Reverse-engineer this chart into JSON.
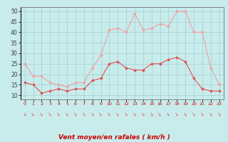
{
  "x": [
    0,
    1,
    2,
    3,
    4,
    5,
    6,
    7,
    8,
    9,
    10,
    11,
    12,
    13,
    14,
    15,
    16,
    17,
    18,
    19,
    20,
    21,
    22,
    23
  ],
  "wind_avg": [
    16,
    15,
    11,
    12,
    13,
    12,
    13,
    13,
    17,
    18,
    25,
    26,
    23,
    22,
    22,
    25,
    25,
    27,
    28,
    26,
    18,
    13,
    12,
    12
  ],
  "wind_gust": [
    25,
    19,
    19,
    16,
    15,
    14,
    16,
    16,
    23,
    29,
    41,
    42,
    40,
    49,
    41,
    42,
    44,
    43,
    50,
    50,
    40,
    40,
    23,
    15
  ],
  "avg_color": "#e05050",
  "gust_color": "#f0a0a0",
  "bg_color": "#c8ecec",
  "grid_color": "#a8d4d4",
  "xlabel": "Vent moyen/en rafales ( km/h )",
  "xlabel_color": "#cc0000",
  "ylabel_color": "#404040",
  "ylim": [
    8,
    52
  ],
  "yticks": [
    10,
    15,
    20,
    25,
    30,
    35,
    40,
    45,
    50
  ],
  "tick_label_color": "#cc0000",
  "arrow_color": "#dd4444",
  "spine_color": "#808080",
  "figsize": [
    3.2,
    2.0
  ],
  "dpi": 100
}
